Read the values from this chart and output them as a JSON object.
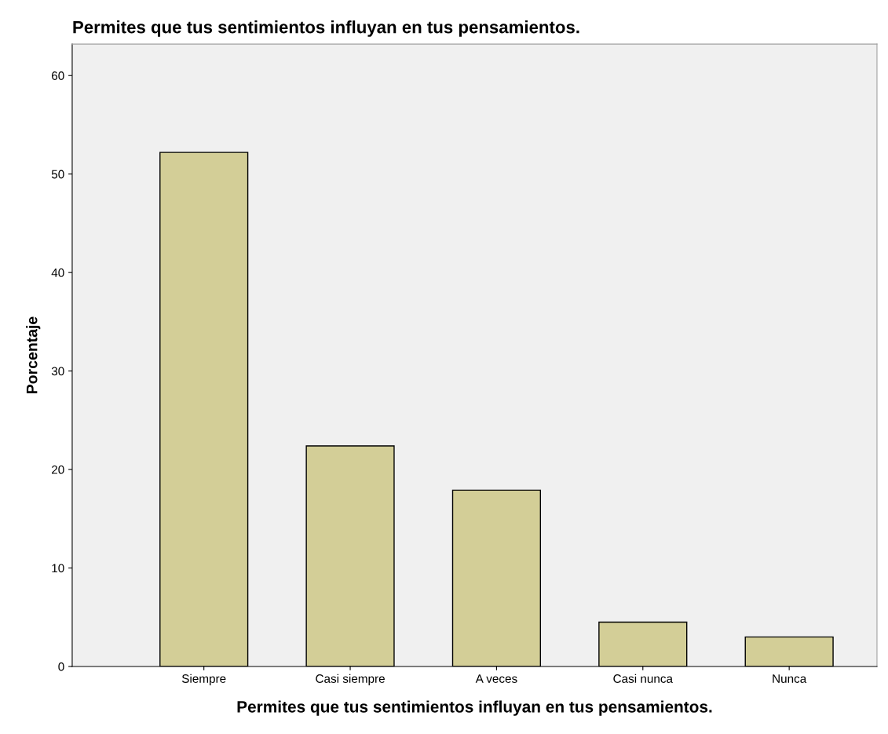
{
  "chart_data": {
    "type": "bar",
    "title": "Permites que tus sentimientos influyan en tus pensamientos.",
    "xlabel": "Permites que tus sentimientos influyan en tus pensamientos.",
    "ylabel": "Porcentaje",
    "categories": [
      "Siempre",
      "Casi siempre",
      "A veces",
      "Casi nunca",
      "Nunca"
    ],
    "values": [
      52.2,
      22.4,
      17.9,
      4.5,
      3.0
    ],
    "color": "#d3ce97",
    "ylim": [
      0,
      63.2
    ],
    "yticks": [
      0,
      10,
      20,
      30,
      40,
      50,
      60
    ],
    "grid": false,
    "legend": false
  }
}
